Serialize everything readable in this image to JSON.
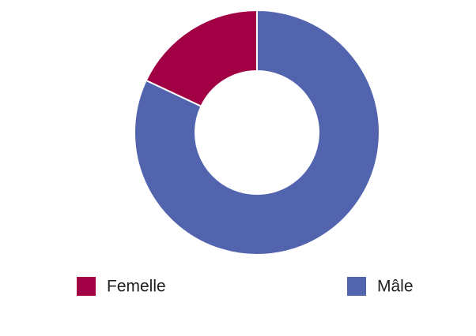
{
  "chart_data": {
    "type": "donut",
    "categories": [
      "Femelle",
      "Mâle"
    ],
    "values": [
      18,
      82
    ],
    "colors": [
      "#a10044",
      "#5264ae"
    ]
  }
}
